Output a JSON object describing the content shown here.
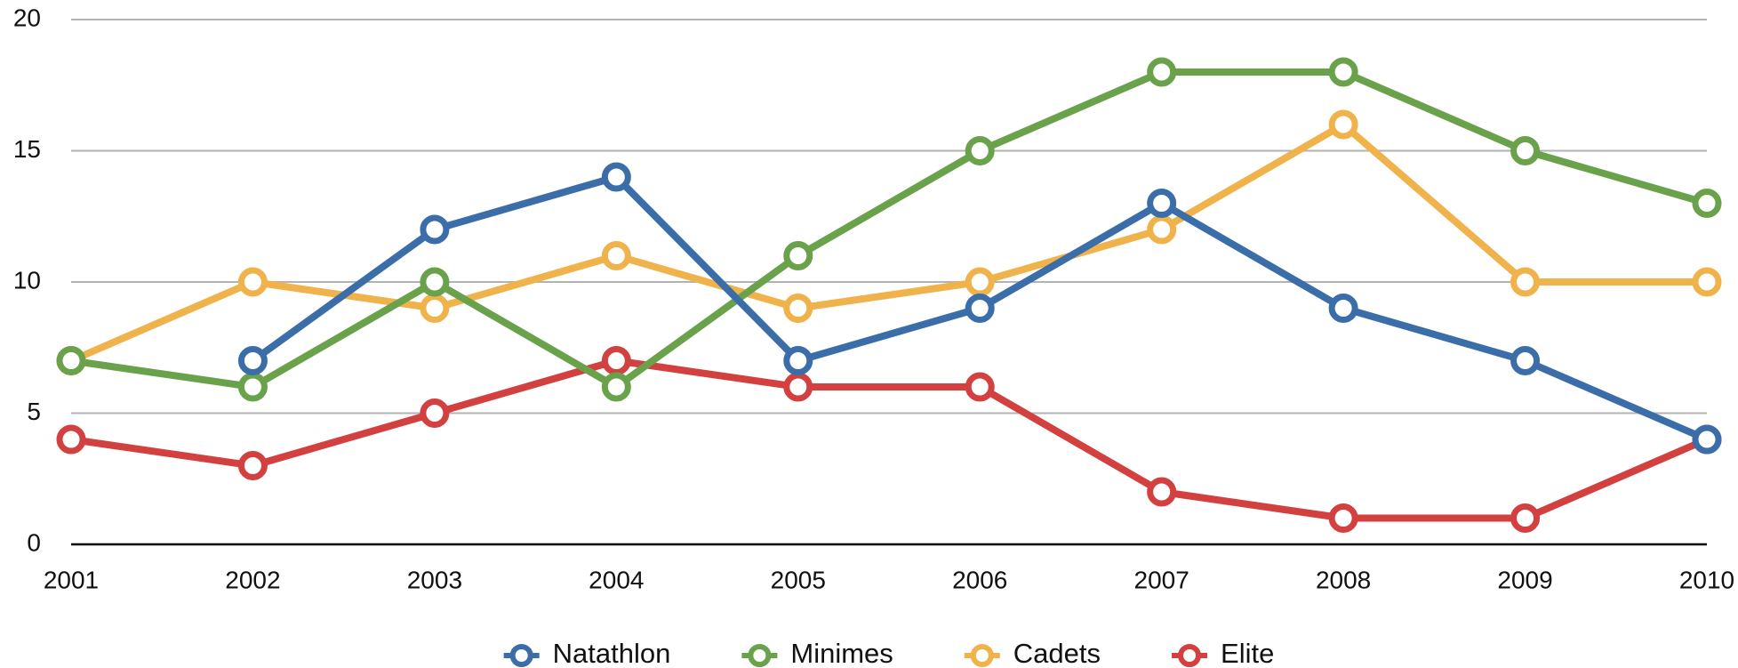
{
  "chart_data": {
    "type": "line",
    "x": [
      2001,
      2002,
      2003,
      2004,
      2005,
      2006,
      2007,
      2008,
      2009,
      2010
    ],
    "xlim": [
      2001,
      2010
    ],
    "xticks": [
      2001,
      2002,
      2003,
      2004,
      2005,
      2006,
      2007,
      2008,
      2009,
      2010
    ],
    "ylim": [
      0,
      20
    ],
    "yticks": [
      0,
      5,
      10,
      15,
      20
    ],
    "grid": true,
    "legend": "bottom",
    "series": [
      {
        "name": "Natathlon",
        "color": "#3b6ea8",
        "values": [
          null,
          7,
          12,
          14,
          7,
          9,
          13,
          9,
          7,
          4
        ]
      },
      {
        "name": "Minimes",
        "color": "#6aa24c",
        "values": [
          7,
          6,
          10,
          6,
          11,
          15,
          18,
          18,
          15,
          13
        ]
      },
      {
        "name": "Cadets",
        "color": "#f0b24b",
        "values": [
          7,
          10,
          9,
          11,
          9,
          10,
          12,
          16,
          10,
          10
        ]
      },
      {
        "name": "Elite",
        "color": "#d2403f",
        "values": [
          4,
          3,
          5,
          7,
          6,
          6,
          2,
          1,
          1,
          4
        ]
      }
    ]
  }
}
